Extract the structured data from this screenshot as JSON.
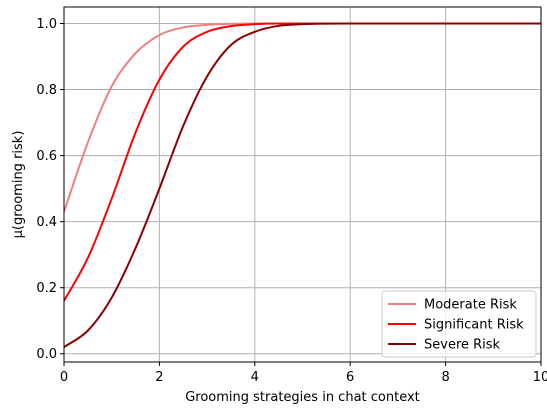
{
  "chart_data": {
    "type": "line",
    "xlabel": "Grooming strategies in chat context",
    "ylabel": "μ(grooming risk)",
    "xlim": [
      0,
      10
    ],
    "ylim": [
      -0.025,
      1.05
    ],
    "x_ticks": [
      "0",
      "2",
      "4",
      "6",
      "8",
      "10"
    ],
    "x_tick_values": [
      0,
      2,
      4,
      6,
      8,
      10
    ],
    "y_ticks": [
      "0.0",
      "0.2",
      "0.4",
      "0.6",
      "0.8",
      "1.0"
    ],
    "y_tick_values": [
      0.0,
      0.2,
      0.4,
      0.6,
      0.8,
      1.0
    ],
    "grid": true,
    "legend_position": "lower-right",
    "x": [
      0,
      0.5,
      1,
      1.5,
      2,
      2.5,
      3,
      3.5,
      4,
      4.5,
      5,
      6,
      7,
      8,
      9,
      10
    ],
    "series": [
      {
        "name": "Moderate Risk",
        "color": "#f08080",
        "values": [
          0.43,
          0.64,
          0.81,
          0.91,
          0.965,
          0.988,
          0.996,
          0.999,
          1.0,
          1.0,
          1.0,
          1.0,
          1.0,
          1.0,
          1.0,
          1.0
        ]
      },
      {
        "name": "Significant Risk",
        "color": "#ff0000",
        "values": [
          0.16,
          0.29,
          0.47,
          0.67,
          0.83,
          0.93,
          0.975,
          0.992,
          0.998,
          1.0,
          1.0,
          1.0,
          1.0,
          1.0,
          1.0,
          1.0
        ]
      },
      {
        "name": "Severe Risk",
        "color": "#8b0000",
        "values": [
          0.02,
          0.07,
          0.17,
          0.32,
          0.5,
          0.69,
          0.84,
          0.935,
          0.975,
          0.993,
          0.998,
          1.0,
          1.0,
          1.0,
          1.0,
          1.0
        ]
      }
    ]
  }
}
